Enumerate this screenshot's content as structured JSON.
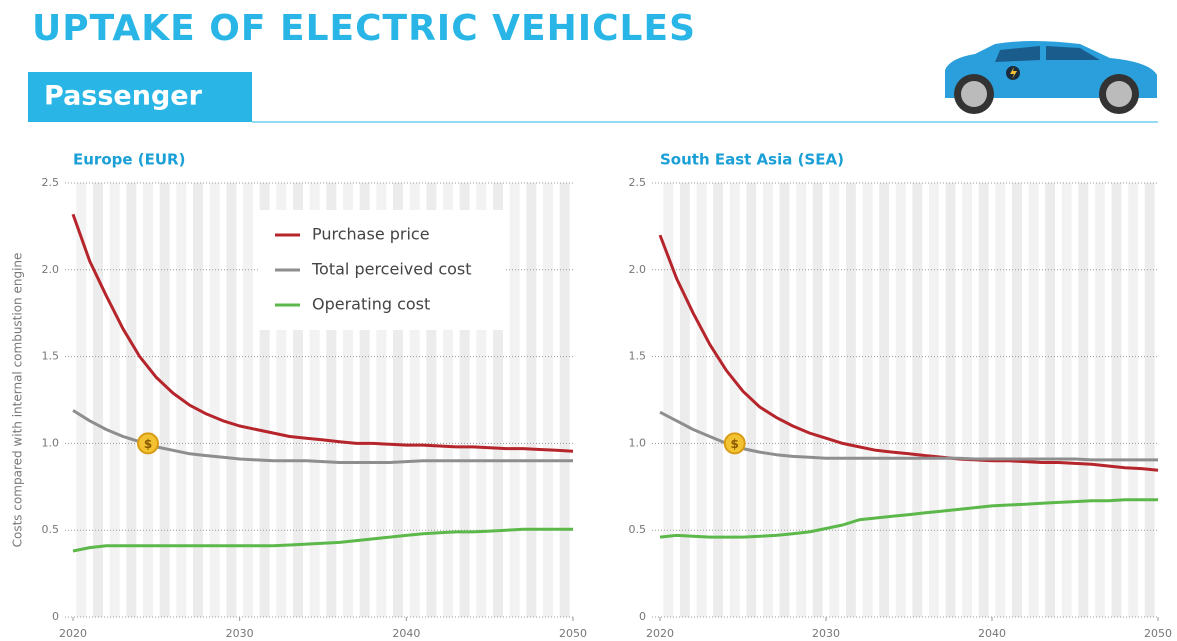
{
  "header": {
    "title": "UPTAKE OF ELECTRIC VEHICLES",
    "section": "Passenger"
  },
  "chart_data": [
    {
      "type": "line",
      "title": "Europe (EUR)",
      "y_label": "Costs compared with internal combustion engine",
      "x": [
        2020,
        2021,
        2022,
        2023,
        2024,
        2025,
        2026,
        2027,
        2028,
        2029,
        2030,
        2031,
        2032,
        2033,
        2034,
        2035,
        2036,
        2037,
        2038,
        2039,
        2040,
        2041,
        2042,
        2043,
        2044,
        2045,
        2046,
        2047,
        2048,
        2049,
        2050
      ],
      "series": [
        {
          "name": "Purchase price",
          "color": "#b5252b",
          "values": [
            2.32,
            2.05,
            1.85,
            1.66,
            1.5,
            1.38,
            1.29,
            1.22,
            1.17,
            1.13,
            1.1,
            1.08,
            1.06,
            1.04,
            1.03,
            1.02,
            1.01,
            1.0,
            1.0,
            0.995,
            0.99,
            0.99,
            0.985,
            0.98,
            0.98,
            0.975,
            0.97,
            0.97,
            0.965,
            0.96,
            0.955
          ]
        },
        {
          "name": "Total perceived cost",
          "color": "#8e8e8e",
          "values": [
            1.19,
            1.13,
            1.08,
            1.04,
            1.01,
            0.98,
            0.96,
            0.94,
            0.93,
            0.92,
            0.91,
            0.905,
            0.9,
            0.9,
            0.9,
            0.895,
            0.89,
            0.89,
            0.89,
            0.89,
            0.895,
            0.9,
            0.9,
            0.9,
            0.9,
            0.9,
            0.9,
            0.9,
            0.9,
            0.9,
            0.9
          ]
        },
        {
          "name": "Operating cost",
          "color": "#5cb84a",
          "values": [
            0.38,
            0.4,
            0.41,
            0.41,
            0.41,
            0.41,
            0.41,
            0.41,
            0.41,
            0.41,
            0.41,
            0.41,
            0.41,
            0.415,
            0.42,
            0.425,
            0.43,
            0.44,
            0.45,
            0.46,
            0.47,
            0.48,
            0.485,
            0.49,
            0.49,
            0.495,
            0.5,
            0.505,
            0.505,
            0.505,
            0.505
          ]
        }
      ],
      "annotations": [
        {
          "x": 2024.5,
          "y": 1.0,
          "label": "$"
        }
      ],
      "xlim": [
        2020,
        2050
      ],
      "xticks": [
        2020,
        2030,
        2040,
        2050
      ],
      "ylim": [
        0,
        2.5
      ],
      "yticks": [
        0,
        0.5,
        {
          "value": 1,
          "label": "1.0"
        },
        1.5,
        {
          "value": 2,
          "label": "2.0"
        },
        2.5
      ],
      "grid": true,
      "legend": "upper-right"
    },
    {
      "type": "line",
      "title": "South East Asia (SEA)",
      "x": [
        2020,
        2021,
        2022,
        2023,
        2024,
        2025,
        2026,
        2027,
        2028,
        2029,
        2030,
        2031,
        2032,
        2033,
        2034,
        2035,
        2036,
        2037,
        2038,
        2039,
        2040,
        2041,
        2042,
        2043,
        2044,
        2045,
        2046,
        2047,
        2048,
        2049,
        2050
      ],
      "series": [
        {
          "color": "#b5252b",
          "values": [
            2.2,
            1.95,
            1.75,
            1.57,
            1.42,
            1.3,
            1.21,
            1.15,
            1.1,
            1.06,
            1.03,
            1.0,
            0.98,
            0.96,
            0.95,
            0.94,
            0.93,
            0.92,
            0.91,
            0.905,
            0.9,
            0.9,
            0.895,
            0.89,
            0.89,
            0.885,
            0.88,
            0.87,
            0.86,
            0.855,
            0.845
          ]
        },
        {
          "color": "#8e8e8e",
          "values": [
            1.18,
            1.13,
            1.08,
            1.04,
            1.0,
            0.97,
            0.95,
            0.935,
            0.925,
            0.92,
            0.915,
            0.915,
            0.915,
            0.915,
            0.915,
            0.915,
            0.915,
            0.915,
            0.915,
            0.91,
            0.91,
            0.91,
            0.91,
            0.91,
            0.91,
            0.91,
            0.905,
            0.905,
            0.905,
            0.905,
            0.905
          ]
        },
        {
          "color": "#5cb84a",
          "values": [
            0.46,
            0.47,
            0.465,
            0.46,
            0.46,
            0.46,
            0.465,
            0.47,
            0.48,
            0.49,
            0.51,
            0.53,
            0.56,
            0.57,
            0.58,
            0.59,
            0.6,
            0.61,
            0.62,
            0.63,
            0.64,
            0.645,
            0.65,
            0.655,
            0.66,
            0.665,
            0.67,
            0.67,
            0.675,
            0.675,
            0.675
          ]
        }
      ],
      "annotations": [
        {
          "x": 2024.5,
          "y": 1.0,
          "label": "$"
        }
      ],
      "xlim": [
        2020,
        2050
      ],
      "xticks": [
        2020,
        2030,
        2040,
        2050
      ],
      "ylim": [
        0,
        2.5
      ],
      "yticks": [
        0,
        0.5,
        {
          "value": 1,
          "label": "1.0"
        },
        1.5,
        {
          "value": 2,
          "label": "2.0"
        },
        2.5
      ],
      "grid": true
    }
  ]
}
